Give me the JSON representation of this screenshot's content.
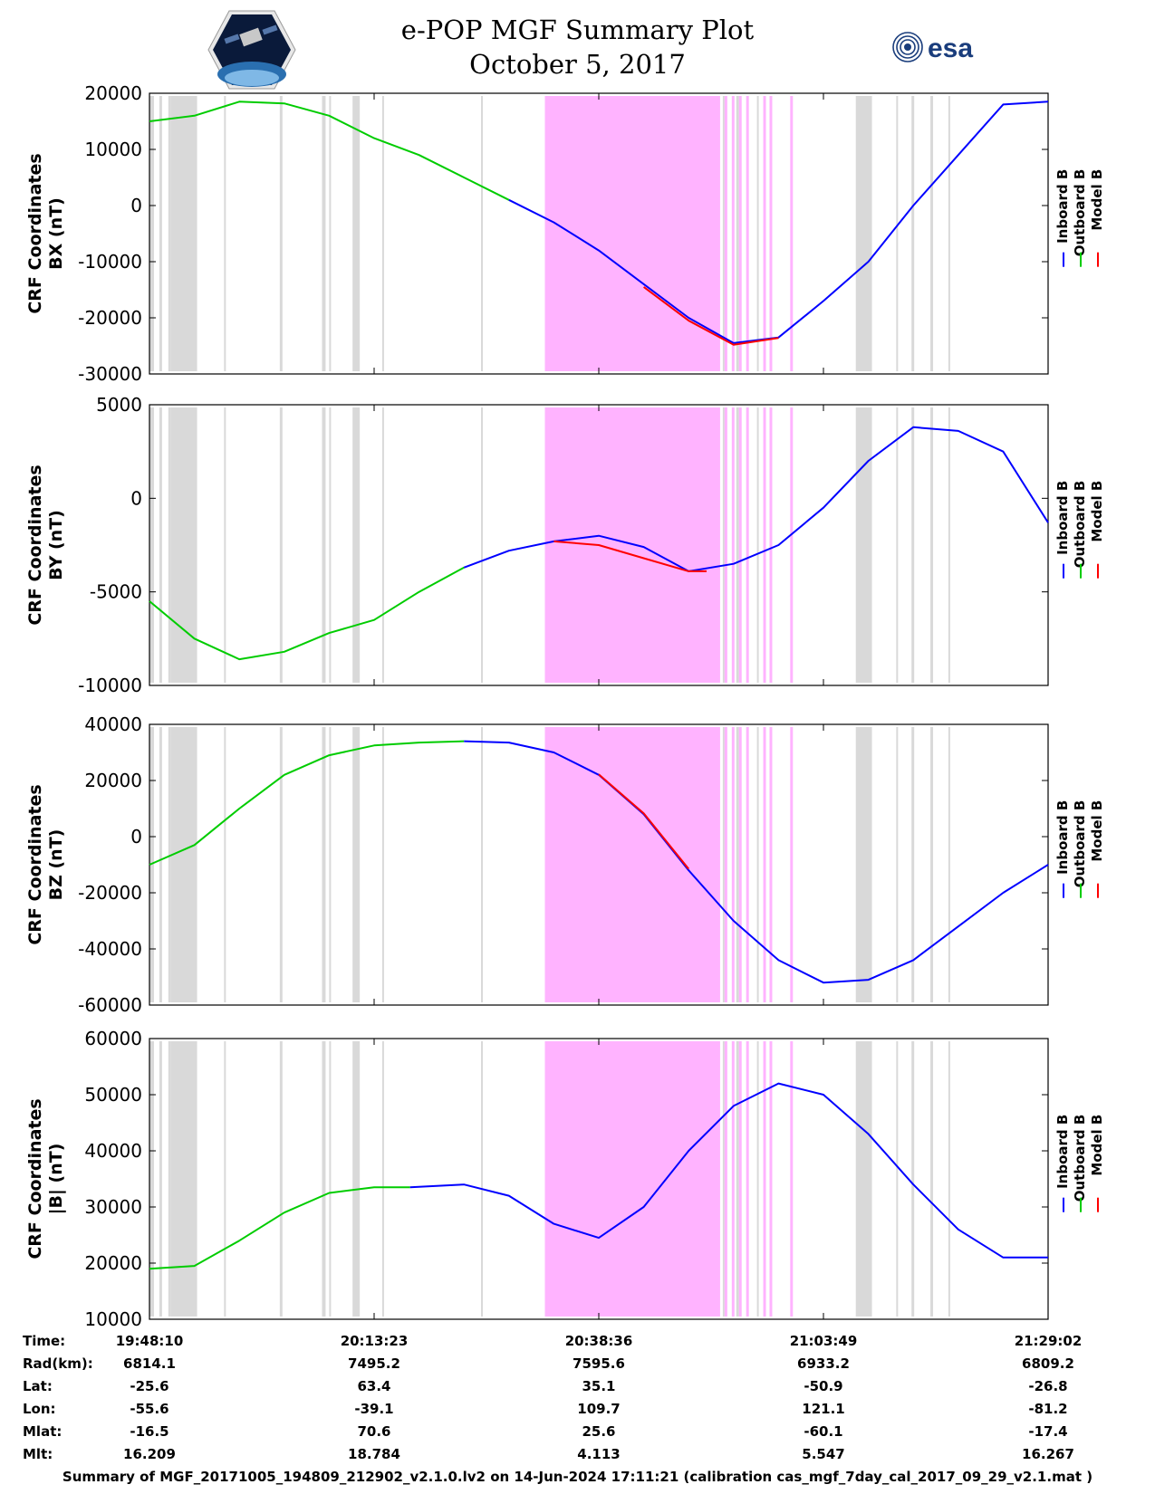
{
  "title": {
    "line1": "e-POP MGF Summary Plot",
    "line2": "October 5, 2017"
  },
  "logos": {
    "left": "cassiope-satellite-logo",
    "right_text": "esa"
  },
  "colors": {
    "inboard": "#0000ff",
    "outboard": "#00cc00",
    "model": "#ff0000",
    "magenta_band": "#ffb3ff",
    "gray_band": "#d9d9d9"
  },
  "legend": [
    "Inboard B",
    "Outboard B",
    "Model B"
  ],
  "chart_data": [
    {
      "type": "line",
      "ylabel_line1": "CRF Coordinates",
      "ylabel_line2": "BX (nT)",
      "ylim": [
        -30000,
        20000
      ],
      "yticks": [
        "20000",
        "10000",
        "0",
        "-10000",
        "-20000",
        "-30000"
      ],
      "series": [
        {
          "name": "Outboard B",
          "x": [
            0,
            0.05,
            0.1,
            0.15,
            0.2,
            0.25,
            0.3,
            0.35,
            0.4
          ],
          "values": [
            15000,
            16000,
            18500,
            18200,
            16000,
            12000,
            9000,
            5000,
            1000
          ]
        },
        {
          "name": "Inboard B",
          "x": [
            0.4,
            0.45,
            0.5,
            0.55,
            0.6,
            0.65,
            0.7,
            0.75,
            0.8,
            0.85,
            0.9,
            0.95,
            1.0
          ],
          "values": [
            1000,
            -3000,
            -8000,
            -14000,
            -20000,
            -24500,
            -23500,
            -17000,
            -10000,
            0,
            9000,
            18000,
            18500
          ]
        },
        {
          "name": "Model B",
          "x": [
            0.55,
            0.6,
            0.65,
            0.7
          ],
          "values": [
            -14500,
            -20500,
            -24800,
            -23600
          ]
        }
      ]
    },
    {
      "type": "line",
      "ylabel_line1": "CRF Coordinates",
      "ylabel_line2": "BY (nT)",
      "ylim": [
        -10000,
        5000
      ],
      "yticks": [
        "5000",
        "0",
        "-5000",
        "-10000"
      ],
      "series": [
        {
          "name": "Outboard B",
          "x": [
            0,
            0.05,
            0.1,
            0.15,
            0.2,
            0.25,
            0.3,
            0.35
          ],
          "values": [
            -5500,
            -7500,
            -8600,
            -8200,
            -7200,
            -6500,
            -5000,
            -3700
          ]
        },
        {
          "name": "Inboard B",
          "x": [
            0.35,
            0.4,
            0.45,
            0.5,
            0.55,
            0.6,
            0.65,
            0.7,
            0.75,
            0.8,
            0.85,
            0.9,
            0.95,
            1.0
          ],
          "values": [
            -3700,
            -2800,
            -2300,
            -2000,
            -2600,
            -3900,
            -3500,
            -2500,
            -500,
            2000,
            3800,
            3600,
            2500,
            -1300
          ]
        },
        {
          "name": "Model B",
          "x": [
            0.45,
            0.5,
            0.55,
            0.6,
            0.62
          ],
          "values": [
            -2300,
            -2500,
            -3200,
            -3900,
            -3900
          ]
        }
      ]
    },
    {
      "type": "line",
      "ylabel_line1": "CRF Coordinates",
      "ylabel_line2": "BZ (nT)",
      "ylim": [
        -60000,
        40000
      ],
      "yticks": [
        "40000",
        "20000",
        "0",
        "-20000",
        "-40000",
        "-60000"
      ],
      "series": [
        {
          "name": "Outboard B",
          "x": [
            0,
            0.05,
            0.1,
            0.15,
            0.2,
            0.25,
            0.3,
            0.35
          ],
          "values": [
            -10000,
            -3000,
            10000,
            22000,
            29000,
            32500,
            33500,
            34000
          ]
        },
        {
          "name": "Inboard B",
          "x": [
            0.35,
            0.4,
            0.45,
            0.5,
            0.55,
            0.6,
            0.65,
            0.7,
            0.75,
            0.8,
            0.85,
            0.9,
            0.95,
            1.0
          ],
          "values": [
            34000,
            33500,
            30000,
            22000,
            8000,
            -12000,
            -30000,
            -44000,
            -52000,
            -51000,
            -44000,
            -32000,
            -20000,
            -10000
          ]
        },
        {
          "name": "Model B",
          "x": [
            0.5,
            0.55,
            0.6
          ],
          "values": [
            22200,
            8300,
            -11500
          ]
        }
      ]
    },
    {
      "type": "line",
      "ylabel_line1": "CRF Coordinates",
      "ylabel_line2": "|B| (nT)",
      "ylim": [
        10000,
        60000
      ],
      "yticks": [
        "60000",
        "50000",
        "40000",
        "30000",
        "20000",
        "10000"
      ],
      "series": [
        {
          "name": "Outboard B",
          "x": [
            0,
            0.05,
            0.1,
            0.15,
            0.2,
            0.25,
            0.29
          ],
          "values": [
            19000,
            19500,
            24000,
            29000,
            32500,
            33500,
            33500
          ]
        },
        {
          "name": "Inboard B",
          "x": [
            0.29,
            0.35,
            0.4,
            0.45,
            0.5,
            0.55,
            0.6,
            0.65,
            0.7,
            0.75,
            0.8,
            0.85,
            0.9,
            0.95,
            1.0
          ],
          "values": [
            33500,
            34000,
            32000,
            27000,
            24500,
            30000,
            40000,
            48000,
            52000,
            50000,
            43000,
            34000,
            26000,
            21000,
            21000
          ]
        },
        {
          "name": "Model B",
          "x": [],
          "values": []
        }
      ]
    }
  ],
  "bands": {
    "magenta": [
      [
        0.44,
        0.635
      ],
      [
        0.64,
        0.643
      ],
      [
        0.648,
        0.651
      ],
      [
        0.656,
        0.659
      ],
      [
        0.664,
        0.667
      ],
      [
        0.683,
        0.686
      ],
      [
        0.69,
        0.693
      ],
      [
        0.713,
        0.716
      ]
    ],
    "gray": [
      [
        0.0,
        0.005
      ],
      [
        0.011,
        0.014
      ],
      [
        0.021,
        0.024
      ],
      [
        0.024,
        0.053
      ],
      [
        0.083,
        0.085
      ],
      [
        0.145,
        0.148
      ],
      [
        0.192,
        0.196
      ],
      [
        0.2,
        0.202
      ],
      [
        0.226,
        0.234
      ],
      [
        0.259,
        0.261
      ],
      [
        0.369,
        0.371
      ],
      [
        0.624,
        0.627
      ],
      [
        0.632,
        0.634
      ],
      [
        0.638,
        0.64
      ],
      [
        0.653,
        0.656
      ],
      [
        0.676,
        0.678
      ],
      [
        0.786,
        0.804
      ],
      [
        0.831,
        0.833
      ],
      [
        0.848,
        0.851
      ],
      [
        0.869,
        0.872
      ],
      [
        0.889,
        0.891
      ]
    ]
  },
  "ephemeris": {
    "labels": [
      "Time:",
      "Rad(km):",
      "Lat:",
      "Lon:",
      "Mlat:",
      "Mlt:"
    ],
    "columns": [
      [
        "19:48:10",
        "6814.1",
        "-25.6",
        "-55.6",
        "-16.5",
        "16.209"
      ],
      [
        "20:13:23",
        "7495.2",
        "63.4",
        "-39.1",
        "70.6",
        "18.784"
      ],
      [
        "20:38:36",
        "7595.6",
        "35.1",
        "109.7",
        "25.6",
        "4.113"
      ],
      [
        "21:03:49",
        "6933.2",
        "-50.9",
        "121.1",
        "-60.1",
        "5.547"
      ],
      [
        "21:29:02",
        "6809.2",
        "-26.8",
        "-81.2",
        "-17.4",
        "16.267"
      ]
    ]
  },
  "footer": "Summary of MGF_20171005_194809_212902_v2.1.0.lv2 on 14-Jun-2024 17:11:21 (calibration cas_mgf_7day_cal_2017_09_29_v2.1.mat )"
}
